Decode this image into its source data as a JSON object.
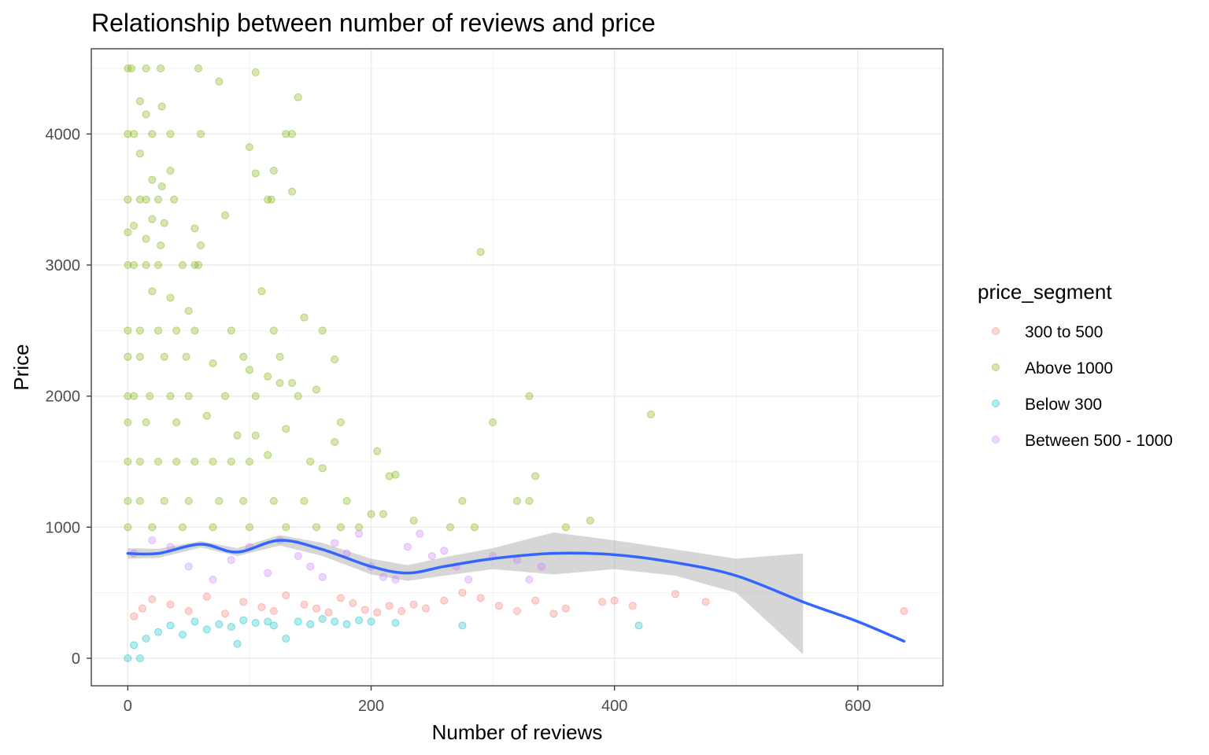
{
  "chart_data": {
    "type": "scatter",
    "title": "Relationship between number of reviews and price",
    "xlabel": "Number of reviews",
    "ylabel": "Price",
    "xlim": [
      -30,
      670
    ],
    "ylim": [
      -210,
      4650
    ],
    "x_ticks": [
      0,
      200,
      400,
      600
    ],
    "y_ticks": [
      0,
      1000,
      2000,
      3000,
      4000
    ],
    "grid": true,
    "legend": {
      "title": "price_segment",
      "placement": "right",
      "entries": [
        {
          "label": "300 to 500",
          "color": "#F8766D"
        },
        {
          "label": "Above 1000",
          "color": "#7CAE00"
        },
        {
          "label": "Below 300",
          "color": "#00BFC4"
        },
        {
          "label": "Between 500 - 1000",
          "color": "#C77CFF"
        }
      ]
    },
    "series": [
      {
        "name": "300 to 500",
        "color": "#F8766D",
        "points": [
          [
            5,
            320
          ],
          [
            12,
            380
          ],
          [
            20,
            450
          ],
          [
            35,
            410
          ],
          [
            50,
            360
          ],
          [
            65,
            470
          ],
          [
            80,
            340
          ],
          [
            95,
            430
          ],
          [
            110,
            390
          ],
          [
            120,
            360
          ],
          [
            130,
            480
          ],
          [
            145,
            410
          ],
          [
            155,
            380
          ],
          [
            165,
            350
          ],
          [
            175,
            460
          ],
          [
            185,
            420
          ],
          [
            195,
            370
          ],
          [
            205,
            350
          ],
          [
            215,
            400
          ],
          [
            225,
            360
          ],
          [
            235,
            410
          ],
          [
            245,
            380
          ],
          [
            260,
            440
          ],
          [
            275,
            500
          ],
          [
            290,
            460
          ],
          [
            305,
            400
          ],
          [
            320,
            360
          ],
          [
            335,
            440
          ],
          [
            350,
            340
          ],
          [
            360,
            380
          ],
          [
            390,
            430
          ],
          [
            400,
            440
          ],
          [
            415,
            400
          ],
          [
            450,
            490
          ],
          [
            475,
            430
          ],
          [
            638,
            360
          ]
        ]
      },
      {
        "name": "Above 1000",
        "color": "#7CAE00",
        "points": [
          [
            0,
            4500
          ],
          [
            3,
            4500
          ],
          [
            15,
            4500
          ],
          [
            27,
            4500
          ],
          [
            58,
            4500
          ],
          [
            105,
            4470
          ],
          [
            75,
            4400
          ],
          [
            140,
            4280
          ],
          [
            10,
            4250
          ],
          [
            28,
            4210
          ],
          [
            15,
            4150
          ],
          [
            0,
            4000
          ],
          [
            5,
            4000
          ],
          [
            20,
            4000
          ],
          [
            35,
            4000
          ],
          [
            60,
            4000
          ],
          [
            130,
            4000
          ],
          [
            135,
            4000
          ],
          [
            100,
            3900
          ],
          [
            10,
            3850
          ],
          [
            35,
            3720
          ],
          [
            105,
            3700
          ],
          [
            120,
            3720
          ],
          [
            20,
            3650
          ],
          [
            28,
            3600
          ],
          [
            135,
            3560
          ],
          [
            0,
            3500
          ],
          [
            10,
            3500
          ],
          [
            15,
            3500
          ],
          [
            25,
            3500
          ],
          [
            38,
            3500
          ],
          [
            115,
            3500
          ],
          [
            118,
            3500
          ],
          [
            80,
            3380
          ],
          [
            20,
            3350
          ],
          [
            30,
            3320
          ],
          [
            5,
            3300
          ],
          [
            55,
            3280
          ],
          [
            0,
            3250
          ],
          [
            15,
            3200
          ],
          [
            60,
            3150
          ],
          [
            27,
            3150
          ],
          [
            0,
            3000
          ],
          [
            5,
            3000
          ],
          [
            15,
            3000
          ],
          [
            25,
            3000
          ],
          [
            45,
            3000
          ],
          [
            55,
            3000
          ],
          [
            58,
            3000
          ],
          [
            290,
            3100
          ],
          [
            20,
            2800
          ],
          [
            35,
            2750
          ],
          [
            110,
            2800
          ],
          [
            50,
            2650
          ],
          [
            0,
            2500
          ],
          [
            10,
            2500
          ],
          [
            25,
            2500
          ],
          [
            40,
            2500
          ],
          [
            55,
            2500
          ],
          [
            85,
            2500
          ],
          [
            120,
            2500
          ],
          [
            160,
            2500
          ],
          [
            145,
            2600
          ],
          [
            0,
            2300
          ],
          [
            10,
            2300
          ],
          [
            30,
            2300
          ],
          [
            48,
            2300
          ],
          [
            95,
            2300
          ],
          [
            125,
            2300
          ],
          [
            70,
            2250
          ],
          [
            170,
            2280
          ],
          [
            100,
            2200
          ],
          [
            115,
            2150
          ],
          [
            0,
            2000
          ],
          [
            5,
            2000
          ],
          [
            18,
            2000
          ],
          [
            35,
            2000
          ],
          [
            50,
            2000
          ],
          [
            80,
            2000
          ],
          [
            105,
            2000
          ],
          [
            140,
            2000
          ],
          [
            125,
            2100
          ],
          [
            135,
            2100
          ],
          [
            155,
            2050
          ],
          [
            0,
            1800
          ],
          [
            15,
            1800
          ],
          [
            40,
            1800
          ],
          [
            65,
            1850
          ],
          [
            90,
            1700
          ],
          [
            105,
            1700
          ],
          [
            130,
            1750
          ],
          [
            175,
            1800
          ],
          [
            170,
            1650
          ],
          [
            0,
            1500
          ],
          [
            10,
            1500
          ],
          [
            25,
            1500
          ],
          [
            40,
            1500
          ],
          [
            55,
            1500
          ],
          [
            70,
            1500
          ],
          [
            85,
            1500
          ],
          [
            100,
            1500
          ],
          [
            115,
            1550
          ],
          [
            150,
            1500
          ],
          [
            160,
            1450
          ],
          [
            205,
            1580
          ],
          [
            215,
            1390
          ],
          [
            220,
            1400
          ],
          [
            0,
            1200
          ],
          [
            10,
            1200
          ],
          [
            30,
            1200
          ],
          [
            50,
            1200
          ],
          [
            75,
            1200
          ],
          [
            95,
            1200
          ],
          [
            120,
            1200
          ],
          [
            145,
            1200
          ],
          [
            180,
            1200
          ],
          [
            200,
            1100
          ],
          [
            210,
            1100
          ],
          [
            275,
            1200
          ],
          [
            300,
            1800
          ],
          [
            320,
            1200
          ],
          [
            330,
            1200
          ],
          [
            335,
            1390
          ],
          [
            0,
            1000
          ],
          [
            20,
            1000
          ],
          [
            45,
            1000
          ],
          [
            70,
            1000
          ],
          [
            100,
            1000
          ],
          [
            130,
            1000
          ],
          [
            155,
            1000
          ],
          [
            175,
            1000
          ],
          [
            190,
            1000
          ],
          [
            235,
            1050
          ],
          [
            265,
            1000
          ],
          [
            285,
            1000
          ],
          [
            330,
            2000
          ],
          [
            360,
            1000
          ],
          [
            380,
            1050
          ],
          [
            430,
            1860
          ]
        ]
      },
      {
        "name": "Below 300",
        "color": "#00BFC4",
        "points": [
          [
            0,
            0
          ],
          [
            10,
            0
          ],
          [
            5,
            100
          ],
          [
            15,
            150
          ],
          [
            25,
            200
          ],
          [
            35,
            250
          ],
          [
            45,
            180
          ],
          [
            55,
            280
          ],
          [
            65,
            220
          ],
          [
            75,
            260
          ],
          [
            85,
            240
          ],
          [
            95,
            290
          ],
          [
            90,
            110
          ],
          [
            105,
            270
          ],
          [
            115,
            280
          ],
          [
            120,
            250
          ],
          [
            130,
            150
          ],
          [
            140,
            280
          ],
          [
            150,
            260
          ],
          [
            160,
            300
          ],
          [
            170,
            280
          ],
          [
            180,
            260
          ],
          [
            190,
            290
          ],
          [
            200,
            280
          ],
          [
            220,
            270
          ],
          [
            275,
            250
          ],
          [
            420,
            250
          ]
        ]
      },
      {
        "name": "Between 500 - 1000",
        "color": "#C77CFF",
        "points": [
          [
            5,
            800
          ],
          [
            20,
            900
          ],
          [
            35,
            850
          ],
          [
            50,
            700
          ],
          [
            70,
            600
          ],
          [
            85,
            750
          ],
          [
            100,
            850
          ],
          [
            115,
            650
          ],
          [
            125,
            900
          ],
          [
            140,
            780
          ],
          [
            150,
            700
          ],
          [
            160,
            620
          ],
          [
            170,
            880
          ],
          [
            180,
            800
          ],
          [
            190,
            950
          ],
          [
            200,
            700
          ],
          [
            210,
            620
          ],
          [
            220,
            600
          ],
          [
            230,
            850
          ],
          [
            240,
            950
          ],
          [
            250,
            780
          ],
          [
            260,
            820
          ],
          [
            270,
            700
          ],
          [
            280,
            600
          ],
          [
            300,
            780
          ],
          [
            320,
            750
          ],
          [
            330,
            600
          ],
          [
            340,
            700
          ]
        ]
      }
    ],
    "smooth_line": {
      "color": "#3366FF",
      "points": [
        [
          0,
          800
        ],
        [
          25,
          800
        ],
        [
          60,
          870
        ],
        [
          90,
          810
        ],
        [
          125,
          900
        ],
        [
          160,
          830
        ],
        [
          200,
          700
        ],
        [
          230,
          650
        ],
        [
          260,
          700
        ],
        [
          300,
          760
        ],
        [
          350,
          800
        ],
        [
          400,
          790
        ],
        [
          450,
          730
        ],
        [
          500,
          630
        ],
        [
          555,
          430
        ],
        [
          600,
          280
        ],
        [
          638,
          130
        ]
      ]
    },
    "confidence_band": {
      "color": "#999999",
      "upper": [
        [
          0,
          840
        ],
        [
          25,
          835
        ],
        [
          60,
          895
        ],
        [
          90,
          840
        ],
        [
          125,
          940
        ],
        [
          160,
          880
        ],
        [
          200,
          760
        ],
        [
          230,
          710
        ],
        [
          260,
          770
        ],
        [
          300,
          840
        ],
        [
          350,
          960
        ],
        [
          400,
          900
        ],
        [
          450,
          830
        ],
        [
          500,
          760
        ],
        [
          555,
          800
        ]
      ],
      "lower": [
        [
          0,
          760
        ],
        [
          25,
          765
        ],
        [
          60,
          845
        ],
        [
          90,
          780
        ],
        [
          125,
          860
        ],
        [
          160,
          780
        ],
        [
          200,
          640
        ],
        [
          230,
          590
        ],
        [
          260,
          630
        ],
        [
          300,
          680
        ],
        [
          350,
          640
        ],
        [
          400,
          680
        ],
        [
          450,
          630
        ],
        [
          500,
          500
        ],
        [
          555,
          30
        ]
      ]
    }
  }
}
